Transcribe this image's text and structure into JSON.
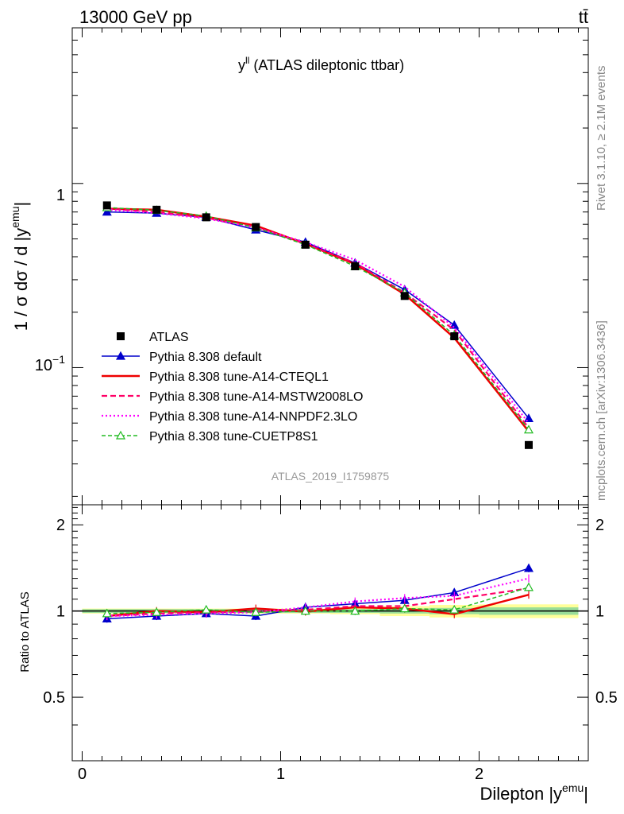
{
  "header": {
    "energy_label": "13000 GeV pp",
    "process_label": "tt̄",
    "rivet_label": "Rivet 3.1.10, ≥ 2.1M events",
    "site_label": "mcplots.cern.ch [arXiv:1306.3436]",
    "analysis_label": "ATLAS_2019_I1759875"
  },
  "chart_data": {
    "type": "line",
    "title": "y",
    "title_sup": "ll",
    "title_rest": " (ATLAS dileptonic ttbar)",
    "ylabel": "1 / σ dσ / d |y",
    "ylabel_sup": "emu",
    "ylabel_end": "|",
    "xlabel": "Dilepton |y",
    "xlabel_sup": "emu",
    "xlabel_end": "|",
    "ratio_ylabel": "Ratio to ATLAS",
    "yscale": "log",
    "ylim": [
      0.018,
      7.0
    ],
    "xlim": [
      -0.05,
      2.55
    ],
    "ratio_ylim": [
      0.3,
      2.35
    ],
    "x_ticks": [
      "0",
      "1",
      "2"
    ],
    "y_ticks": {
      "one": "1",
      "tenth_base": "10",
      "tenth_exp": "−1"
    },
    "ratio_ticks": [
      "0.5",
      "1",
      "2"
    ],
    "x": [
      0.125,
      0.375,
      0.625,
      0.875,
      1.125,
      1.375,
      1.625,
      1.875,
      2.25
    ],
    "data": {
      "name": "ATLAS",
      "values": [
        0.76,
        0.72,
        0.655,
        0.58,
        0.465,
        0.355,
        0.245,
        0.148,
        0.038
      ],
      "band_inner": [
        0.015,
        0.015,
        0.015,
        0.015,
        0.015,
        0.015,
        0.02,
        0.025,
        0.03
      ],
      "band_outer": [
        0.02,
        0.02,
        0.02,
        0.02,
        0.02,
        0.025,
        0.04,
        0.05,
        0.055
      ]
    },
    "series": [
      {
        "name": "Pythia 8.308 default",
        "color": "#0000cc",
        "values": [
          0.7,
          0.69,
          0.655,
          0.56,
          0.48,
          0.37,
          0.265,
          0.17,
          0.053
        ],
        "ratio": [
          0.94,
          0.96,
          0.98,
          0.96,
          1.03,
          1.06,
          1.09,
          1.16,
          1.41
        ]
      },
      {
        "name": "Pythia 8.308 tune-A14-CTEQL1",
        "color": "#ee0000",
        "values": [
          0.73,
          0.72,
          0.66,
          0.59,
          0.47,
          0.365,
          0.25,
          0.145,
          0.045
        ],
        "ratio": [
          0.96,
          1.0,
          0.99,
          1.02,
          0.995,
          1.03,
          1.02,
          0.975,
          1.14
        ]
      },
      {
        "name": "Pythia 8.308 tune-A14-MSTW2008LO",
        "color": "#ff0066",
        "values": [
          0.73,
          0.7,
          0.65,
          0.58,
          0.47,
          0.37,
          0.255,
          0.16,
          0.047
        ],
        "ratio": [
          0.96,
          0.98,
          0.99,
          0.995,
          1.01,
          1.04,
          1.04,
          1.1,
          1.2
        ]
      },
      {
        "name": "Pythia 8.308 tune-A14-NNPDF2.3LO",
        "color": "#ff00ff",
        "values": [
          0.72,
          0.69,
          0.645,
          0.575,
          0.48,
          0.385,
          0.275,
          0.165,
          0.05
        ],
        "ratio": [
          0.96,
          0.97,
          0.98,
          0.99,
          1.03,
          1.08,
          1.11,
          1.13,
          1.3
        ]
      },
      {
        "name": "Pythia 8.308 tune-CUETP8S1",
        "color": "#22bb22",
        "values": [
          0.74,
          0.715,
          0.665,
          0.575,
          0.465,
          0.355,
          0.255,
          0.15,
          0.046
        ],
        "ratio": [
          0.98,
          0.99,
          1.01,
          0.99,
          1.0,
          1.0,
          1.02,
          1.01,
          1.21
        ]
      }
    ]
  }
}
